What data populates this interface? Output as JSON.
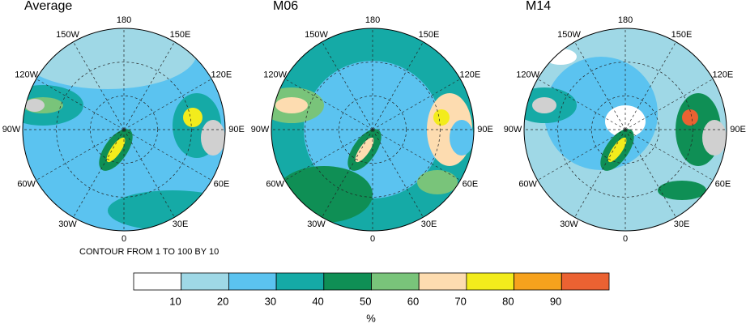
{
  "panels": [
    {
      "title": "Average",
      "lon_labels": [
        "180",
        "150E",
        "120E",
        "90E",
        "60E",
        "30E",
        "0",
        "30W",
        "60W",
        "90W",
        "120W",
        "150W"
      ],
      "note": "CONTOUR FROM 1 TO 100 BY 10"
    },
    {
      "title": "M06",
      "lon_labels": [
        "180",
        "150E",
        "120E",
        "90E",
        "60E",
        "30E",
        "0",
        "30W",
        "60W",
        "90W",
        "120W",
        "150W"
      ]
    },
    {
      "title": "M14",
      "lon_labels": [
        "180",
        "150E",
        "120E",
        "90E",
        "60E",
        "30E",
        "0",
        "30W",
        "60W",
        "90W",
        "120W",
        "150W"
      ]
    }
  ],
  "colorbar": {
    "colors": [
      "#ffffff",
      "#9fd8e6",
      "#5bc3f0",
      "#15aaa6",
      "#0f8f55",
      "#79c47a",
      "#fddcb0",
      "#f3ec1c",
      "#f6a21d",
      "#eb6232"
    ],
    "ticks": [
      10,
      20,
      30,
      40,
      50,
      60,
      70,
      80,
      90
    ],
    "unit": "%"
  }
}
